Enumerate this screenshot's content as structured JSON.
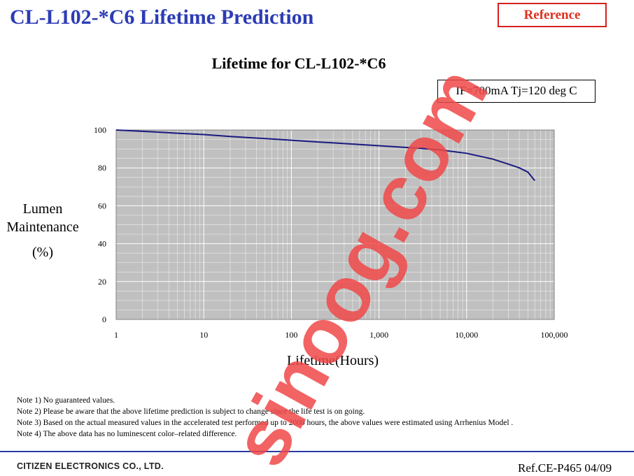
{
  "header": {
    "title": "CL-L102-*C6 Lifetime Prediction",
    "badge": "Reference"
  },
  "chart": {
    "condition_label": "IF=700mA Tj=120 deg C",
    "ylabel_lines": [
      "Lumen",
      "Maintenance",
      "(%)"
    ],
    "xlabel": "Lifetime(Hours)"
  },
  "chart_data": {
    "type": "line",
    "title": "Lifetime for CL-L102-*C6",
    "xlabel": "Lifetime(Hours)",
    "ylabel": "Lumen Maintenance (%)",
    "x_scale": "log",
    "xlim": [
      1,
      100000
    ],
    "ylim": [
      0,
      100
    ],
    "x_ticks": [
      1,
      10,
      100,
      1000,
      10000,
      100000
    ],
    "x_tick_labels": [
      "1",
      "10",
      "100",
      "1,000",
      "10,000",
      "100,000"
    ],
    "y_ticks": [
      0,
      20,
      40,
      60,
      80,
      100
    ],
    "y_tick_labels": [
      "0",
      "20",
      "40",
      "60",
      "80",
      "100"
    ],
    "grid": true,
    "plot_background": "#c0c0c0",
    "line_color": "#1a1a80",
    "series": [
      {
        "x": [
          1,
          2,
          3,
          5,
          10,
          20,
          30,
          50,
          100,
          200,
          300,
          500,
          1000,
          2000,
          3000,
          5000,
          10000,
          20000,
          30000,
          40000,
          50000,
          60000
        ],
        "y": [
          100,
          99.3,
          98.9,
          98.3,
          97.6,
          96.6,
          96.1,
          95.5,
          94.6,
          93.7,
          93.2,
          92.6,
          91.7,
          90.8,
          90.3,
          89.5,
          87.7,
          84.6,
          82,
          80,
          77.8,
          73.3
        ]
      }
    ]
  },
  "notes": [
    "Note 1) No guaranteed values.",
    "Note 2) Please be aware that the above lifetime prediction is subject to change since the life test is on going.",
    "Note 3) Based on the actual measured values in the accelerated test performed up to 2000 hours, the above values were estimated using Arrhenius Model .",
    "Note 4) The above data has no luminescent color–related difference."
  ],
  "footer": {
    "company": "CITIZEN ELECTRONICS CO., LTD.",
    "doc_ref": "Ref.CE-P465 04/09"
  },
  "watermark": {
    "text": "sinoog.com",
    "color": "#f04848"
  }
}
